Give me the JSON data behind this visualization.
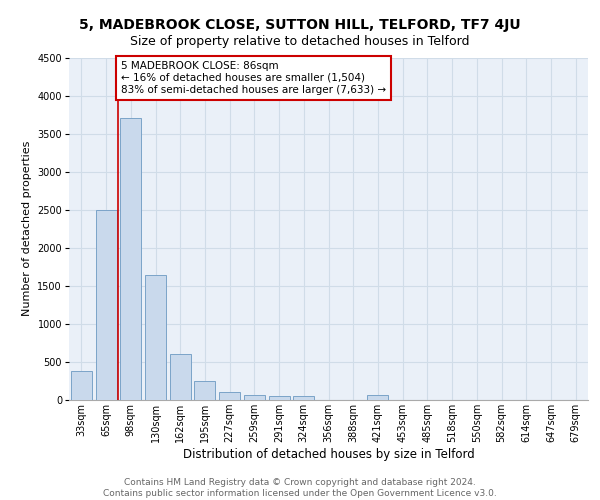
{
  "title1": "5, MADEBROOK CLOSE, SUTTON HILL, TELFORD, TF7 4JU",
  "title2": "Size of property relative to detached houses in Telford",
  "xlabel": "Distribution of detached houses by size in Telford",
  "ylabel": "Number of detached properties",
  "categories": [
    "33sqm",
    "65sqm",
    "98sqm",
    "130sqm",
    "162sqm",
    "195sqm",
    "227sqm",
    "259sqm",
    "291sqm",
    "324sqm",
    "356sqm",
    "388sqm",
    "421sqm",
    "453sqm",
    "485sqm",
    "518sqm",
    "550sqm",
    "582sqm",
    "614sqm",
    "647sqm",
    "679sqm"
  ],
  "values": [
    375,
    2500,
    3700,
    1640,
    600,
    250,
    100,
    65,
    50,
    50,
    0,
    0,
    65,
    0,
    0,
    0,
    0,
    0,
    0,
    0,
    0
  ],
  "bar_color": "#c9d9ec",
  "bar_edge_color": "#7ba3c8",
  "grid_color": "#d0dce8",
  "background_color": "#eaf0f8",
  "property_line_x": 1.5,
  "property_line_color": "#cc0000",
  "annotation_text": "5 MADEBROOK CLOSE: 86sqm\n← 16% of detached houses are smaller (1,504)\n83% of semi-detached houses are larger (7,633) →",
  "annotation_box_color": "#cc0000",
  "annotation_bg": "#ffffff",
  "ylim": [
    0,
    4500
  ],
  "yticks": [
    0,
    500,
    1000,
    1500,
    2000,
    2500,
    3000,
    3500,
    4000,
    4500
  ],
  "footer_text": "Contains HM Land Registry data © Crown copyright and database right 2024.\nContains public sector information licensed under the Open Government Licence v3.0.",
  "title1_fontsize": 10,
  "title2_fontsize": 9,
  "xlabel_fontsize": 8.5,
  "ylabel_fontsize": 8,
  "tick_fontsize": 7,
  "footer_fontsize": 6.5,
  "annot_fontsize": 7.5
}
